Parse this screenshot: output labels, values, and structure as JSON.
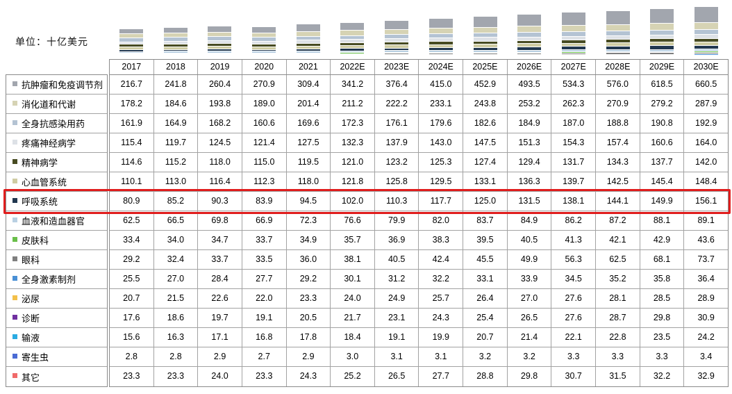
{
  "unit_label": "单位：十亿美元",
  "chart_data": {
    "type": "bar",
    "stacked": true,
    "title": "",
    "unit": "单位：十亿美元",
    "grid": false,
    "legend_position": "table-row-labels-left",
    "highlighted_series": "呼吸系统",
    "highlight_color": "#e01d1d",
    "x": [
      "2017",
      "2018",
      "2019",
      "2020",
      "2021",
      "2022E",
      "2023E",
      "2024E",
      "2025E",
      "2026E",
      "2027E",
      "2028E",
      "2029E",
      "2030E"
    ],
    "series": [
      {
        "name": "抗肿瘤和免疫调节剂",
        "color": "#a2a6ae",
        "values": [
          216.7,
          241.8,
          260.4,
          270.9,
          309.4,
          341.2,
          376.4,
          415.0,
          452.9,
          493.5,
          534.3,
          576.0,
          618.5,
          660.5
        ]
      },
      {
        "name": "消化道和代谢",
        "color": "#d6d3b4",
        "values": [
          178.2,
          184.6,
          193.8,
          189.0,
          201.4,
          211.2,
          222.2,
          233.1,
          243.8,
          253.2,
          262.3,
          270.9,
          279.2,
          287.9
        ]
      },
      {
        "name": "全身抗感染用药",
        "color": "#b4c3d3",
        "values": [
          161.9,
          164.9,
          168.2,
          160.6,
          169.6,
          172.3,
          176.1,
          179.6,
          182.6,
          184.9,
          187.0,
          188.8,
          190.8,
          192.9
        ]
      },
      {
        "name": "疼痛神经病学",
        "color": "#dde1e6",
        "values": [
          115.4,
          119.7,
          124.5,
          121.4,
          127.5,
          132.3,
          137.9,
          143.0,
          147.5,
          151.3,
          154.3,
          157.4,
          160.6,
          164.0
        ]
      },
      {
        "name": "精神病学",
        "color": "#474b22",
        "values": [
          114.6,
          115.2,
          118.0,
          115.0,
          119.5,
          121.0,
          123.2,
          125.3,
          127.4,
          129.4,
          131.7,
          134.3,
          137.7,
          142.0
        ]
      },
      {
        "name": "心血管系统",
        "color": "#cfcca3",
        "values": [
          110.1,
          113.0,
          116.4,
          112.3,
          118.0,
          121.8,
          125.8,
          129.5,
          133.1,
          136.3,
          139.7,
          142.5,
          145.4,
          148.4
        ]
      },
      {
        "name": "呼吸系统",
        "color": "#21374f",
        "values": [
          80.9,
          85.2,
          90.3,
          83.9,
          94.5,
          102.0,
          110.3,
          117.7,
          125.0,
          131.5,
          138.1,
          144.1,
          149.9,
          156.1
        ]
      },
      {
        "name": "血液和造血器官",
        "color": "#b9d0e2",
        "values": [
          62.5,
          66.5,
          69.8,
          66.9,
          72.3,
          76.6,
          79.9,
          82.0,
          83.7,
          84.9,
          86.2,
          87.2,
          88.1,
          89.1
        ]
      },
      {
        "name": "皮肤科",
        "color": "#6abf4a",
        "values": [
          33.4,
          34.0,
          34.7,
          33.7,
          34.9,
          35.7,
          36.9,
          38.3,
          39.5,
          40.5,
          41.3,
          42.1,
          42.9,
          43.6
        ]
      },
      {
        "name": "眼科",
        "color": "#7f7f7f",
        "values": [
          29.2,
          32.4,
          33.7,
          33.5,
          36.0,
          38.1,
          40.5,
          42.4,
          45.5,
          49.9,
          56.3,
          62.5,
          68.1,
          73.7
        ]
      },
      {
        "name": "全身激素制剂",
        "color": "#4a90d5",
        "values": [
          25.5,
          27.0,
          28.4,
          27.7,
          29.2,
          30.1,
          31.2,
          32.2,
          33.1,
          33.9,
          34.5,
          35.2,
          35.8,
          36.4
        ]
      },
      {
        "name": "泌尿",
        "color": "#f3c04a",
        "values": [
          20.7,
          21.5,
          22.6,
          22.0,
          23.3,
          24.0,
          24.9,
          25.7,
          26.4,
          27.0,
          27.6,
          28.1,
          28.5,
          28.9
        ]
      },
      {
        "name": "诊断",
        "color": "#7030a0",
        "values": [
          17.6,
          18.6,
          19.7,
          19.1,
          20.5,
          21.7,
          23.1,
          24.3,
          25.4,
          26.5,
          27.6,
          28.7,
          29.8,
          30.9
        ]
      },
      {
        "name": "输液",
        "color": "#2aabe2",
        "values": [
          15.6,
          16.3,
          17.1,
          16.8,
          17.8,
          18.4,
          19.1,
          19.9,
          20.7,
          21.4,
          22.1,
          22.8,
          23.5,
          24.2
        ]
      },
      {
        "name": "寄生虫",
        "color": "#4a6bd4",
        "values": [
          2.8,
          2.8,
          2.9,
          2.7,
          2.9,
          3.0,
          3.1,
          3.1,
          3.2,
          3.2,
          3.3,
          3.3,
          3.3,
          3.4
        ]
      },
      {
        "name": "其它",
        "color": "#f06a6a",
        "values": [
          23.3,
          23.3,
          24.0,
          23.3,
          24.3,
          25.2,
          26.5,
          27.7,
          28.8,
          29.8,
          30.7,
          31.5,
          32.2,
          32.9
        ]
      }
    ]
  }
}
